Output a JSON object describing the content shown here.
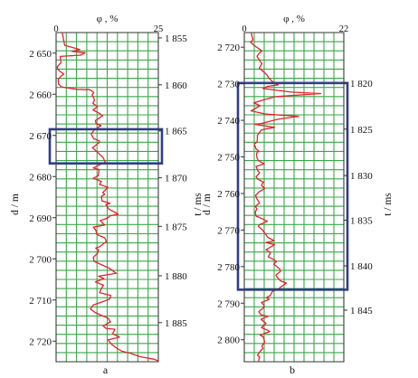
{
  "figure": {
    "sublabels": [
      "a",
      "b"
    ]
  },
  "chart_data": [
    {
      "type": "line",
      "panel_label": "a",
      "top_axis": {
        "label": "φ , %",
        "ticks": [
          "0",
          "25"
        ],
        "range": [
          0,
          25
        ]
      },
      "left_axis": {
        "label": "d / m",
        "range": [
          2645,
          2725
        ],
        "ticks": [
          {
            "value": 2650,
            "label": "2 650"
          },
          {
            "value": 2660,
            "label": "2 660"
          },
          {
            "value": 2670,
            "label": "2 670"
          },
          {
            "value": 2680,
            "label": "2 680"
          },
          {
            "value": 2690,
            "label": "2 690"
          },
          {
            "value": 2700,
            "label": "2 700"
          },
          {
            "value": 2710,
            "label": "2 710"
          },
          {
            "value": 2720,
            "label": "2 720"
          }
        ]
      },
      "right_axis": {
        "label": "t / ms",
        "ticks": [
          {
            "depth": 2646.3,
            "label": "1 855"
          },
          {
            "depth": 2657.7,
            "label": "1 860"
          },
          {
            "depth": 2668.9,
            "label": "1 865"
          },
          {
            "depth": 2680.3,
            "label": "1 870"
          },
          {
            "depth": 2692.1,
            "label": "1 875"
          },
          {
            "depth": 2704.1,
            "label": "1 880"
          },
          {
            "depth": 2715.5,
            "label": "1 885"
          }
        ]
      },
      "grid": true,
      "highlight_box": {
        "depth_range": [
          2668.5,
          2676.8
        ],
        "color": "#2e3e8c"
      },
      "series_color": "#e8202a",
      "series": [
        {
          "points": [
            [
              1.5,
              2645
            ],
            [
              2.1,
              2648.1
            ],
            [
              5.8,
              2649.1
            ],
            [
              3.9,
              2649.6
            ],
            [
              7.1,
              2649.9
            ],
            [
              6.0,
              2650.5
            ],
            [
              1.0,
              2650.8
            ],
            [
              1.2,
              2652.3
            ],
            [
              0.3,
              2653.3
            ],
            [
              0.4,
              2653.9
            ],
            [
              0.9,
              2654.4
            ],
            [
              1.9,
              2655.1
            ],
            [
              1.2,
              2655.6
            ],
            [
              0.5,
              2656.4
            ],
            [
              0.6,
              2657.5
            ],
            [
              1.3,
              2658.2
            ],
            [
              5.1,
              2658.8
            ],
            [
              8.3,
              2658.9
            ],
            [
              9.2,
              2659.6
            ],
            [
              8.8,
              2660.2
            ],
            [
              9.4,
              2661.3
            ],
            [
              9.0,
              2662.2
            ],
            [
              10.1,
              2663.0
            ],
            [
              9.0,
              2663.8
            ],
            [
              10.5,
              2664.6
            ],
            [
              11.4,
              2665.2
            ],
            [
              9.6,
              2666.4
            ],
            [
              9.8,
              2667.2
            ],
            [
              11.0,
              2667.6
            ],
            [
              9.3,
              2668.7
            ],
            [
              8.6,
              2669.7
            ],
            [
              9.2,
              2670.8
            ],
            [
              10.5,
              2671.3
            ],
            [
              10.6,
              2671.7
            ],
            [
              8.9,
              2673.0
            ],
            [
              9.8,
              2673.8
            ],
            [
              11.5,
              2675.4
            ],
            [
              12.0,
              2676.5
            ],
            [
              10.1,
              2677.4
            ],
            [
              9.1,
              2677.9
            ],
            [
              10.5,
              2678.3
            ],
            [
              10.3,
              2679.8
            ],
            [
              9.1,
              2680.4
            ],
            [
              11.1,
              2681.2
            ],
            [
              10.6,
              2681.9
            ],
            [
              12.7,
              2682.6
            ],
            [
              11.4,
              2683.9
            ],
            [
              11.9,
              2684.3
            ],
            [
              11.1,
              2684.8
            ],
            [
              11.2,
              2685.9
            ],
            [
              13.2,
              2686.5
            ],
            [
              12.2,
              2686.8
            ],
            [
              12.9,
              2687.9
            ],
            [
              15.2,
              2689.1
            ],
            [
              13.1,
              2689.6
            ],
            [
              12.6,
              2690.1
            ],
            [
              10.8,
              2690.7
            ],
            [
              11.9,
              2691.8
            ],
            [
              9.1,
              2692.3
            ],
            [
              9.7,
              2693.0
            ],
            [
              10.0,
              2694.1
            ],
            [
              11.9,
              2694.9
            ],
            [
              12.3,
              2695.8
            ],
            [
              10.7,
              2697.0
            ],
            [
              9.7,
              2697.4
            ],
            [
              10.4,
              2697.8
            ],
            [
              10.1,
              2698.7
            ],
            [
              9.1,
              2699.6
            ],
            [
              9.3,
              2700.6
            ],
            [
              11.3,
              2701.5
            ],
            [
              12.9,
              2702.2
            ],
            [
              14.7,
              2703.5
            ],
            [
              10.4,
              2704.2
            ],
            [
              11.7,
              2704.8
            ],
            [
              9.6,
              2705.6
            ],
            [
              11.6,
              2706.4
            ],
            [
              11.2,
              2707.0
            ],
            [
              10.6,
              2708.2
            ],
            [
              13.4,
              2708.9
            ],
            [
              13.1,
              2709.8
            ],
            [
              10.3,
              2710.8
            ],
            [
              9.1,
              2711.2
            ],
            [
              8.4,
              2712.2
            ],
            [
              9.5,
              2713.0
            ],
            [
              11.0,
              2713.7
            ],
            [
              12.7,
              2714.4
            ],
            [
              13.3,
              2715.3
            ],
            [
              11.5,
              2716.3
            ],
            [
              12.2,
              2716.9
            ],
            [
              14.4,
              2717.1
            ],
            [
              13.8,
              2718.2
            ],
            [
              15.5,
              2719.0
            ],
            [
              12.7,
              2719.7
            ],
            [
              13.6,
              2720.8
            ],
            [
              14.8,
              2721.7
            ],
            [
              16.0,
              2722.4
            ],
            [
              18.3,
              2723.0
            ],
            [
              20.6,
              2723.8
            ],
            [
              24.0,
              2724.4
            ],
            [
              25.0,
              2724.8
            ]
          ]
        }
      ]
    },
    {
      "type": "line",
      "panel_label": "b",
      "top_axis": {
        "label": "φ , %",
        "ticks": [
          "0",
          "22"
        ],
        "range": [
          0,
          22
        ]
      },
      "left_axis": {
        "label": "d / m",
        "range": [
          2716,
          2806
        ],
        "ticks": [
          {
            "value": 2720,
            "label": "2 720"
          },
          {
            "value": 2730,
            "label": "2 730"
          },
          {
            "value": 2740,
            "label": "2 740"
          },
          {
            "value": 2750,
            "label": "2 750"
          },
          {
            "value": 2760,
            "label": "2 760"
          },
          {
            "value": 2770,
            "label": "2 770"
          },
          {
            "value": 2780,
            "label": "2 780"
          },
          {
            "value": 2790,
            "label": "2 790"
          },
          {
            "value": 2800,
            "label": "2 800"
          }
        ]
      },
      "right_axis": {
        "label": "t / ms",
        "ticks": [
          {
            "depth": 2729.8,
            "label": "1 820"
          },
          {
            "depth": 2742.4,
            "label": "1 825"
          },
          {
            "depth": 2755.1,
            "label": "1 830"
          },
          {
            "depth": 2767.3,
            "label": "1 835"
          },
          {
            "depth": 2779.8,
            "label": "1 840"
          },
          {
            "depth": 2791.9,
            "label": "1 845"
          }
        ]
      },
      "grid": true,
      "highlight_box": {
        "depth_range": [
          2729.8,
          2786.3
        ],
        "color": "#2e3e8c"
      },
      "series_color": "#e8202a",
      "series": [
        {
          "points": [
            [
              1.5,
              2716
            ],
            [
              1.9,
              2717.9
            ],
            [
              1.4,
              2718.7
            ],
            [
              2.6,
              2719.9
            ],
            [
              3.9,
              2721.0
            ],
            [
              3.2,
              2721.8
            ],
            [
              2.8,
              2722.5
            ],
            [
              3.4,
              2723.6
            ],
            [
              3.9,
              2724.5
            ],
            [
              3.3,
              2725.7
            ],
            [
              4.6,
              2727.1
            ],
            [
              5.1,
              2727.7
            ],
            [
              5.4,
              2728.4
            ],
            [
              6.4,
              2729.6
            ],
            [
              7.5,
              2730.3
            ],
            [
              5.2,
              2730.7
            ],
            [
              4.1,
              2731.3
            ],
            [
              10.5,
              2732.3
            ],
            [
              16.9,
              2732.7
            ],
            [
              7.1,
              2733.5
            ],
            [
              5.4,
              2734.0
            ],
            [
              2.1,
              2735.2
            ],
            [
              3.5,
              2736.0
            ],
            [
              2.4,
              2736.8
            ],
            [
              1.5,
              2737.4
            ],
            [
              4.8,
              2738.3
            ],
            [
              12.0,
              2738.9
            ],
            [
              7.4,
              2739.7
            ],
            [
              3.6,
              2740.9
            ],
            [
              2.3,
              2741.1
            ],
            [
              6.7,
              2741.9
            ],
            [
              3.8,
              2742.6
            ],
            [
              2.9,
              2744.1
            ],
            [
              2.9,
              2745.0
            ],
            [
              2.8,
              2746.0
            ],
            [
              2.2,
              2746.4
            ],
            [
              2.6,
              2747.8
            ],
            [
              3.2,
              2748.4
            ],
            [
              2.7,
              2749.0
            ],
            [
              2.8,
              2750.3
            ],
            [
              3.1,
              2751.0
            ],
            [
              4.4,
              2751.9
            ],
            [
              2.6,
              2752.6
            ],
            [
              3.0,
              2753.8
            ],
            [
              3.4,
              2754.3
            ],
            [
              2.6,
              2755.4
            ],
            [
              2.9,
              2756.0
            ],
            [
              4.2,
              2756.9
            ],
            [
              3.8,
              2757.7
            ],
            [
              4.5,
              2758.7
            ],
            [
              3.3,
              2759.5
            ],
            [
              2.5,
              2760.5
            ],
            [
              2.8,
              2761.5
            ],
            [
              3.4,
              2762.6
            ],
            [
              2.4,
              2763.5
            ],
            [
              2.8,
              2764.2
            ],
            [
              2.4,
              2765.1
            ],
            [
              2.6,
              2766.2
            ],
            [
              3.4,
              2766.6
            ],
            [
              5.1,
              2767.6
            ],
            [
              3.4,
              2768.5
            ],
            [
              3.1,
              2769.0
            ],
            [
              3.9,
              2769.8
            ],
            [
              4.7,
              2771.1
            ],
            [
              5.2,
              2772.0
            ],
            [
              6.6,
              2772.9
            ],
            [
              4.8,
              2773.4
            ],
            [
              6.7,
              2774.0
            ],
            [
              4.8,
              2775.4
            ],
            [
              5.8,
              2776.2
            ],
            [
              5.3,
              2777.3
            ],
            [
              6.4,
              2778.0
            ],
            [
              7.1,
              2778.6
            ],
            [
              6.5,
              2779.3
            ],
            [
              7.8,
              2780.6
            ],
            [
              8.0,
              2781.3
            ],
            [
              7.0,
              2782.3
            ],
            [
              7.1,
              2782.6
            ],
            [
              8.0,
              2783.9
            ],
            [
              9.3,
              2784.5
            ],
            [
              8.6,
              2785.1
            ],
            [
              7.4,
              2786.2
            ],
            [
              6.2,
              2786.8
            ],
            [
              5.8,
              2787.8
            ],
            [
              4.9,
              2788.5
            ],
            [
              5.5,
              2789.0
            ],
            [
              3.8,
              2789.8
            ],
            [
              4.4,
              2790.6
            ],
            [
              4.3,
              2791.2
            ],
            [
              3.2,
              2792.3
            ],
            [
              3.7,
              2793.2
            ],
            [
              5.2,
              2793.6
            ],
            [
              3.7,
              2794.4
            ],
            [
              4.8,
              2795.5
            ],
            [
              3.8,
              2796.7
            ],
            [
              5.2,
              2797.4
            ],
            [
              5.6,
              2797.8
            ],
            [
              3.5,
              2798.7
            ],
            [
              4.2,
              2799.2
            ],
            [
              4.5,
              2800.6
            ],
            [
              3.9,
              2801.7
            ],
            [
              4.1,
              2802.5
            ],
            [
              3.6,
              2803.0
            ],
            [
              2.9,
              2804.2
            ],
            [
              3.4,
              2804.7
            ],
            [
              3.2,
              2805.5
            ],
            [
              3.2,
              2806
            ]
          ]
        }
      ]
    }
  ]
}
